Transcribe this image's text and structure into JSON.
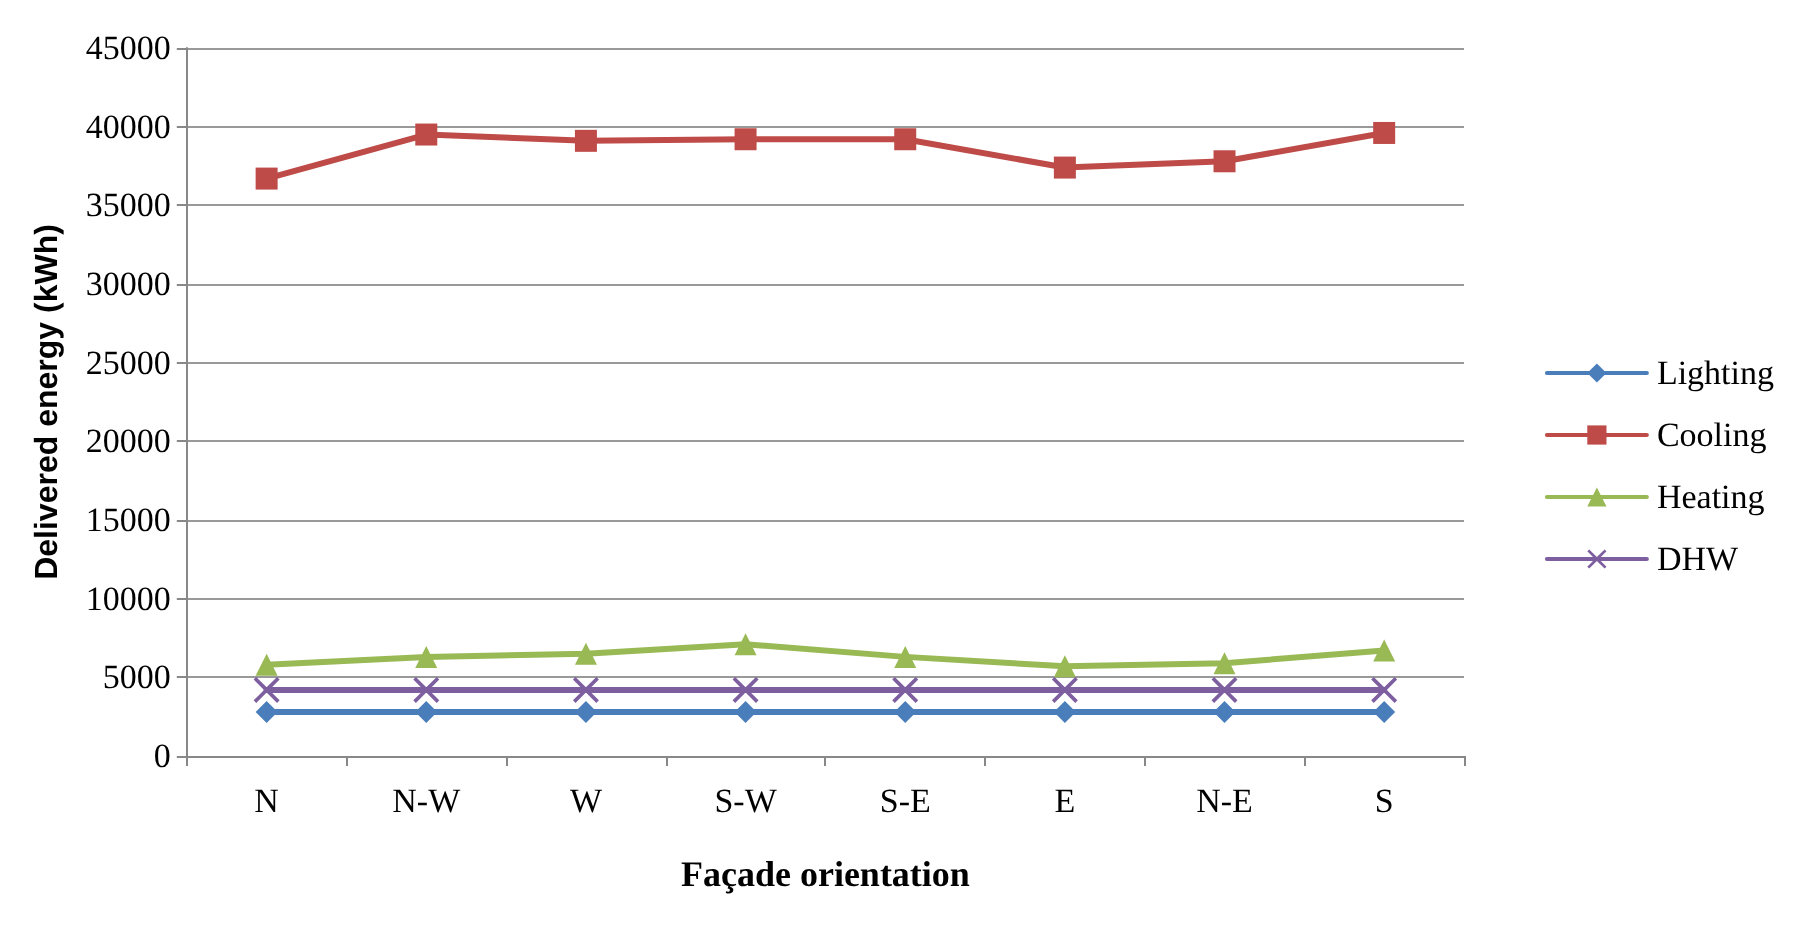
{
  "chart_data": {
    "type": "line",
    "xlabel": "Façade orientation",
    "ylabel": "Delivered energy (kWh)",
    "categories": [
      "N",
      "N-W",
      "W",
      "S-W",
      "S-E",
      "E",
      "N-E",
      "S"
    ],
    "series": [
      {
        "name": "Lighting",
        "color": "#4a7ebb",
        "marker": "diamond",
        "values": [
          2800,
          2800,
          2800,
          2800,
          2800,
          2800,
          2800,
          2800
        ]
      },
      {
        "name": "Cooling",
        "color": "#be4b48",
        "marker": "square",
        "values": [
          36700,
          39500,
          39100,
          39200,
          39200,
          37400,
          37800,
          39600
        ]
      },
      {
        "name": "Heating",
        "color": "#98b954",
        "marker": "triangle",
        "values": [
          5800,
          6300,
          6500,
          7100,
          6300,
          5700,
          5900,
          6700
        ]
      },
      {
        "name": "DHW",
        "color": "#7d5fa0",
        "marker": "cross",
        "values": [
          4200,
          4200,
          4200,
          4200,
          4200,
          4200,
          4200,
          4200
        ]
      }
    ],
    "ylim": [
      0,
      45000
    ],
    "yticks": [
      0,
      5000,
      10000,
      15000,
      20000,
      25000,
      30000,
      35000,
      40000,
      45000
    ],
    "grid": "y",
    "legend": "right",
    "line_style": "solid"
  }
}
